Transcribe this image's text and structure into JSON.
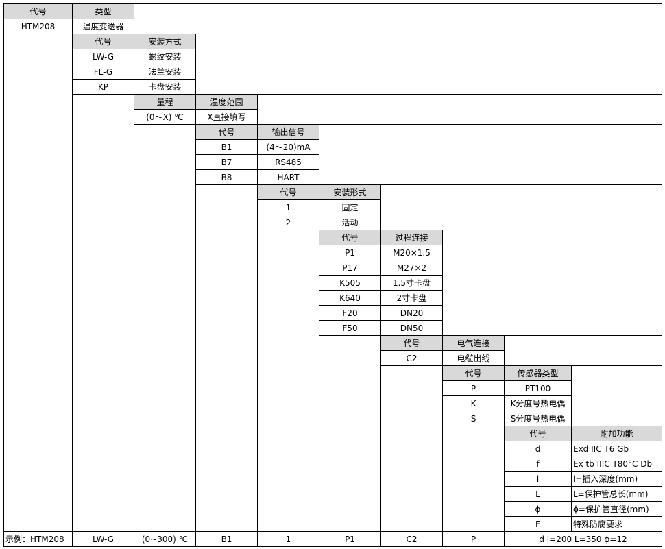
{
  "groups": [
    {
      "headers": [
        "代号",
        "类型"
      ],
      "rows": [
        [
          "HTM208",
          "温度变送器"
        ]
      ]
    },
    {
      "headers": [
        "代号",
        "安装方式"
      ],
      "rows": [
        [
          "LW-G",
          "螺纹安装"
        ],
        [
          "FL-G",
          "法兰安装"
        ],
        [
          "KP",
          "卡盘安装"
        ]
      ]
    },
    {
      "headers": [
        "量程",
        "温度范围"
      ],
      "rows": [
        [
          "(0～X) ℃",
          "X直接填写"
        ]
      ]
    },
    {
      "headers": [
        "代号",
        "输出信号"
      ],
      "rows": [
        [
          "B1",
          "(4～20)mA"
        ],
        [
          "B7",
          "RS485"
        ],
        [
          "B8",
          "HART"
        ]
      ]
    },
    {
      "headers": [
        "代号",
        "安装形式"
      ],
      "rows": [
        [
          "1",
          "固定"
        ],
        [
          "2",
          "活动"
        ]
      ]
    },
    {
      "headers": [
        "代号",
        "过程连接"
      ],
      "rows": [
        [
          "P1",
          "M20×1.5"
        ],
        [
          "P17",
          "M27×2"
        ],
        [
          "K505",
          "1.5寸卡盘"
        ],
        [
          "K640",
          "2寸卡盘"
        ],
        [
          "F20",
          "DN20"
        ],
        [
          "F50",
          "DN50"
        ]
      ]
    },
    {
      "headers": [
        "代号",
        "电气连接"
      ],
      "rows": [
        [
          "C2",
          "电缆出线"
        ]
      ]
    },
    {
      "headers": [
        "代号",
        "传感器类型"
      ],
      "rows": [
        [
          "P",
          "PT100"
        ],
        [
          "K",
          "K分度号热电偶"
        ],
        [
          "S",
          "S分度号热电偶"
        ]
      ]
    },
    {
      "headers": [
        "代号",
        "附加功能"
      ],
      "rows": [
        [
          "d",
          "Exd IIC T6 Gb"
        ],
        [
          "f",
          "Ex tb IIIC T80°C Db"
        ],
        [
          "l",
          "l=插入深度(mm)"
        ],
        [
          "L",
          "L=保护管总长(mm)"
        ],
        [
          "ϕ",
          "ϕ=保护管直径(mm)"
        ],
        [
          "F",
          "特殊防腐要求"
        ]
      ]
    }
  ],
  "example": [
    "示例：HTM208",
    "LW-G",
    "(0~300) ℃",
    "B1",
    "1",
    "P1",
    "C2",
    "P",
    "d l=200 L=350 ϕ=12"
  ]
}
